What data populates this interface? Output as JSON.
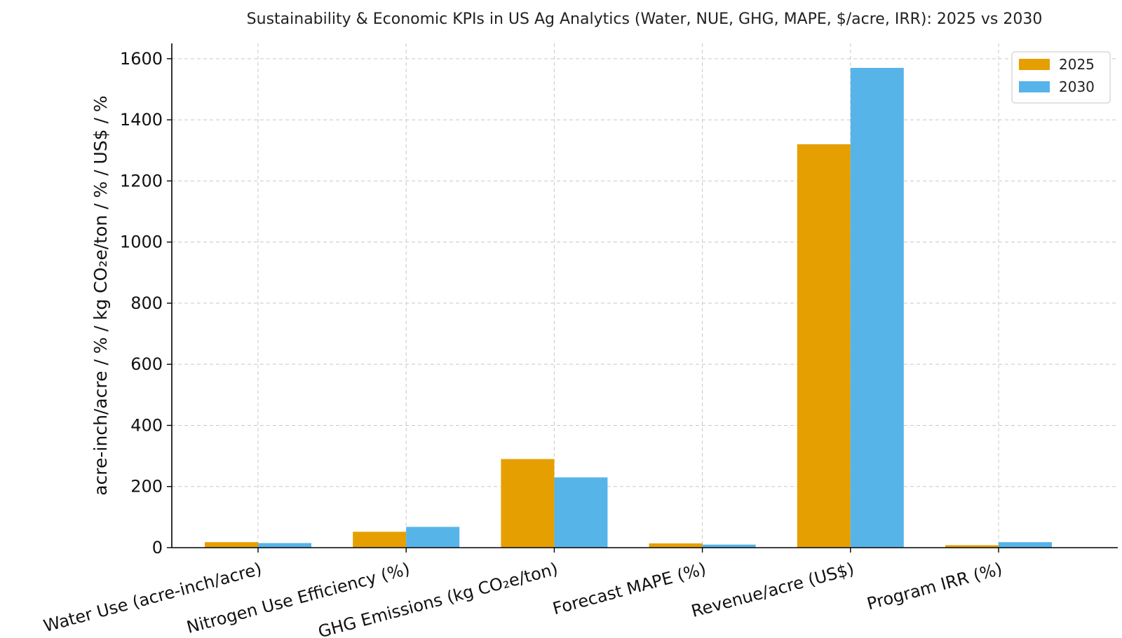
{
  "chart_data": {
    "type": "bar",
    "title": "Sustainability & Economic KPIs in US Ag Analytics (Water, NUE, GHG, MAPE, $/acre, IRR): 2025 vs 2030",
    "xlabel": "",
    "ylabel": "acre-inch/acre / % / kg CO₂e/ton / % / US$ / %",
    "ylim": [
      0,
      1650
    ],
    "yticks": [
      0,
      200,
      400,
      600,
      800,
      1000,
      1200,
      1400,
      1600
    ],
    "grid": true,
    "legend_position": "top-right",
    "categories": [
      "Water Use (acre-inch/acre)",
      "Nitrogen Use Efficiency (%)",
      "GHG Emissions (kg CO₂e/ton)",
      "Forecast MAPE (%)",
      "Revenue/acre (US$)",
      "Program IRR (%)"
    ],
    "series": [
      {
        "name": "2025",
        "color": "#E69F00",
        "values": [
          18,
          52,
          290,
          14,
          1320,
          8
        ]
      },
      {
        "name": "2030",
        "color": "#56B4E9",
        "values": [
          15,
          68,
          230,
          10,
          1570,
          18
        ]
      }
    ]
  }
}
